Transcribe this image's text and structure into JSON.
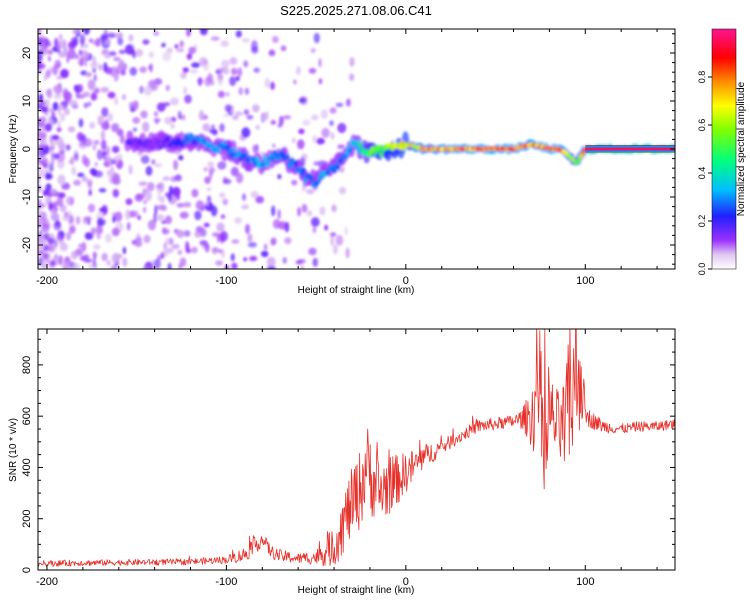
{
  "figure_title": "S225.2025.271.08.06.C41",
  "chart_data": [
    {
      "type": "heatmap",
      "title": "S225.2025.271.08.06.C41",
      "xlabel": "Height of straight line (km)",
      "ylabel": "Frequency (Hz)",
      "xlim": [
        -205,
        150
      ],
      "ylim": [
        -25,
        25
      ],
      "xticks": [
        -200,
        -100,
        0,
        100
      ],
      "yticks": [
        -20,
        -10,
        0,
        10,
        20
      ],
      "colorbar": {
        "label": "Normalized spectral amplitude",
        "range": [
          0,
          1
        ],
        "ticks": [
          0.0,
          0.2,
          0.4,
          0.6,
          0.8
        ],
        "colormap": [
          "#ffffff",
          "#e0c8f0",
          "#9b30ff",
          "#2020ff",
          "#00bfff",
          "#00ff7f",
          "#7fff00",
          "#ffff00",
          "#ff8c00",
          "#ff0000",
          "#ff1493"
        ]
      },
      "ridge": {
        "x": [
          -155,
          -140,
          -120,
          -110,
          -100,
          -90,
          -80,
          -70,
          -60,
          -55,
          -50,
          -45,
          -40,
          -35,
          -30,
          -25,
          -20,
          -10,
          0,
          10,
          20,
          40,
          60,
          70,
          80,
          85,
          90,
          95,
          100,
          110,
          120,
          150
        ],
        "freq": [
          2,
          1,
          2,
          1,
          0,
          -2,
          -3,
          -1,
          -4,
          -6,
          -7,
          -5,
          -4,
          -2,
          1,
          0,
          -1,
          0,
          1,
          0,
          0,
          0,
          0,
          1,
          0,
          0,
          -1,
          -3,
          0,
          0,
          0,
          0
        ],
        "amplitude": [
          0.2,
          0.15,
          0.3,
          0.35,
          0.3,
          0.3,
          0.35,
          0.3,
          0.3,
          0.3,
          0.3,
          0.35,
          0.3,
          0.3,
          0.35,
          0.45,
          0.55,
          0.65,
          0.7,
          0.8,
          0.85,
          0.9,
          0.9,
          0.85,
          0.9,
          0.9,
          0.8,
          0.5,
          0.9,
          0.95,
          0.95,
          0.95
        ]
      },
      "noise_region_km": [
        -205,
        -30
      ],
      "constant_line_freq_hz": 0
    },
    {
      "type": "line",
      "xlabel": "Height of straight line (km)",
      "ylabel": "SNR (10 * v/v)",
      "xlim": [
        -205,
        150
      ],
      "ylim": [
        0,
        940
      ],
      "xticks": [
        -200,
        -100,
        0,
        100
      ],
      "yticks": [
        0,
        200,
        400,
        600,
        800
      ],
      "series": [
        {
          "name": "SNR",
          "color": "#e8302a",
          "x": [
            -205,
            -180,
            -150,
            -120,
            -100,
            -90,
            -85,
            -80,
            -75,
            -70,
            -60,
            -50,
            -40,
            -35,
            -30,
            -25,
            -22,
            -20,
            -15,
            -10,
            -5,
            0,
            10,
            20,
            30,
            40,
            50,
            60,
            65,
            70,
            72,
            74,
            76,
            78,
            80,
            85,
            88,
            90,
            93,
            96,
            98,
            100,
            110,
            120,
            130,
            140,
            150
          ],
          "y": [
            25,
            28,
            30,
            32,
            40,
            60,
            90,
            120,
            70,
            55,
            45,
            50,
            90,
            180,
            260,
            320,
            420,
            380,
            300,
            330,
            350,
            380,
            440,
            480,
            520,
            560,
            570,
            580,
            590,
            600,
            640,
            750,
            560,
            430,
            610,
            560,
            540,
            600,
            700,
            780,
            760,
            600,
            560,
            550,
            560,
            560,
            570
          ],
          "spread": [
            12,
            12,
            12,
            12,
            15,
            30,
            35,
            30,
            25,
            25,
            20,
            30,
            80,
            120,
            140,
            160,
            160,
            160,
            140,
            120,
            100,
            80,
            50,
            30,
            25,
            25,
            25,
            25,
            40,
            120,
            200,
            260,
            240,
            200,
            150,
            140,
            200,
            260,
            300,
            260,
            200,
            40,
            25,
            20,
            20,
            20,
            20
          ]
        }
      ]
    }
  ]
}
